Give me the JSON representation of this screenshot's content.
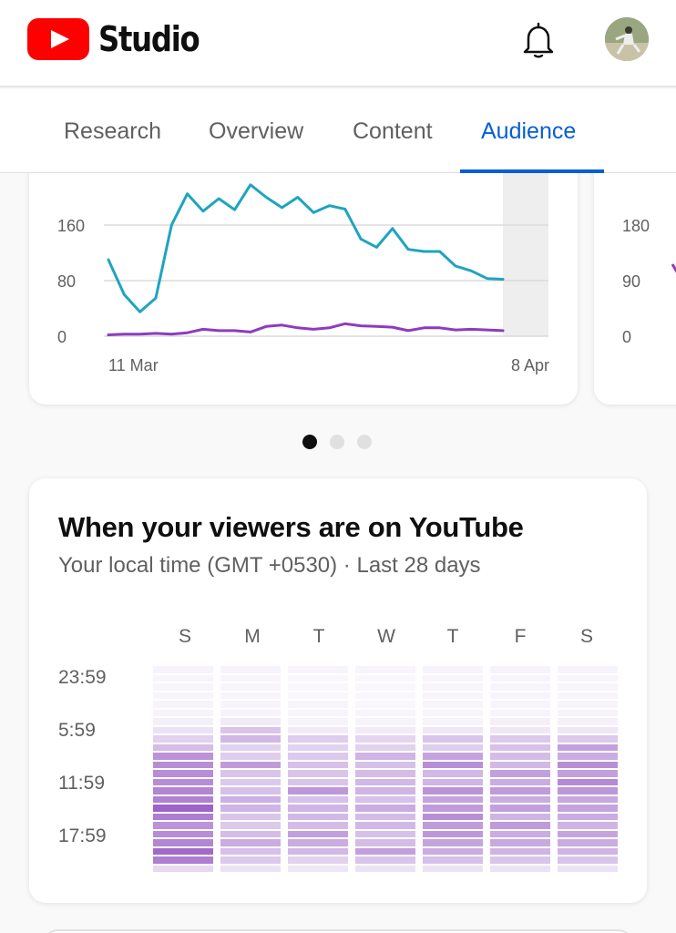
{
  "header": {
    "app_name": "Studio",
    "logo_icon": "youtube-play-icon",
    "notifications_icon": "bell-icon",
    "avatar_icon": "user-avatar"
  },
  "tabs": [
    {
      "label": "Research",
      "active": false
    },
    {
      "label": "Overview",
      "active": false
    },
    {
      "label": "Content",
      "active": false
    },
    {
      "label": "Audience",
      "active": true
    }
  ],
  "colors": {
    "brand_red": "#ff0000",
    "accent_blue": "#065fd4",
    "series_teal": "#1ea4c1",
    "series_purple": "#8e3bbf",
    "heat_base": "#7b2fb5"
  },
  "chart_data": [
    {
      "type": "line",
      "y_ticks": [
        "0",
        "80",
        "160"
      ],
      "ylim": [
        0,
        240
      ],
      "x_labels": [
        "11 Mar",
        "8 Apr"
      ],
      "series": [
        {
          "values": [
            110,
            60,
            35,
            55,
            160,
            205,
            180,
            198,
            182,
            218,
            200,
            185,
            200,
            178,
            188,
            183,
            140,
            128,
            155,
            125,
            122,
            122,
            101,
            94,
            83,
            82
          ]
        },
        {
          "values": [
            2,
            3,
            3,
            4,
            3,
            5,
            10,
            8,
            8,
            6,
            14,
            16,
            12,
            10,
            12,
            18,
            15,
            14,
            13,
            8,
            12,
            12,
            9,
            10,
            9,
            8
          ]
        }
      ],
      "highlight_last": true,
      "grid": true
    },
    {
      "type": "line",
      "y_ticks": [
        "0",
        "90",
        "180"
      ],
      "partial": true
    }
  ],
  "carousel": {
    "count": 3,
    "active_index": 0
  },
  "heatmap": {
    "title": "When your viewers are on YouTube",
    "subtitle": "Your local time (GMT +0530) · Last 28 days",
    "days": [
      "S",
      "M",
      "T",
      "W",
      "T",
      "F",
      "S"
    ],
    "time_labels": [
      "23:59",
      "5:59",
      "11:59",
      "17:59"
    ],
    "rows_per_column": 24,
    "intensity": [
      [
        0.06,
        0.05,
        0.05,
        0.05,
        0.06,
        0.06,
        0.08,
        0.14,
        0.22,
        0.32,
        0.52,
        0.55,
        0.55,
        0.55,
        0.58,
        0.6,
        0.75,
        0.62,
        0.52,
        0.55,
        0.58,
        0.72,
        0.62,
        0.18
      ],
      [
        0.06,
        0.05,
        0.05,
        0.05,
        0.05,
        0.06,
        0.1,
        0.28,
        0.34,
        0.22,
        0.24,
        0.48,
        0.28,
        0.26,
        0.3,
        0.38,
        0.36,
        0.28,
        0.26,
        0.32,
        0.4,
        0.3,
        0.26,
        0.14
      ],
      [
        0.05,
        0.04,
        0.04,
        0.04,
        0.05,
        0.05,
        0.06,
        0.1,
        0.24,
        0.22,
        0.26,
        0.3,
        0.28,
        0.28,
        0.5,
        0.3,
        0.36,
        0.34,
        0.32,
        0.46,
        0.4,
        0.34,
        0.22,
        0.12
      ],
      [
        0.05,
        0.04,
        0.04,
        0.04,
        0.04,
        0.05,
        0.06,
        0.1,
        0.2,
        0.22,
        0.36,
        0.3,
        0.32,
        0.34,
        0.36,
        0.3,
        0.4,
        0.32,
        0.34,
        0.3,
        0.32,
        0.46,
        0.28,
        0.14
      ],
      [
        0.06,
        0.05,
        0.05,
        0.05,
        0.05,
        0.05,
        0.06,
        0.12,
        0.28,
        0.24,
        0.44,
        0.54,
        0.34,
        0.36,
        0.52,
        0.44,
        0.48,
        0.54,
        0.48,
        0.5,
        0.44,
        0.4,
        0.3,
        0.14
      ],
      [
        0.06,
        0.05,
        0.05,
        0.05,
        0.05,
        0.05,
        0.08,
        0.12,
        0.26,
        0.3,
        0.32,
        0.34,
        0.46,
        0.4,
        0.48,
        0.4,
        0.46,
        0.36,
        0.48,
        0.4,
        0.42,
        0.36,
        0.28,
        0.14
      ],
      [
        0.06,
        0.05,
        0.05,
        0.05,
        0.05,
        0.06,
        0.07,
        0.12,
        0.26,
        0.46,
        0.4,
        0.54,
        0.46,
        0.56,
        0.5,
        0.42,
        0.44,
        0.4,
        0.36,
        0.44,
        0.4,
        0.36,
        0.28,
        0.14
      ]
    ]
  }
}
